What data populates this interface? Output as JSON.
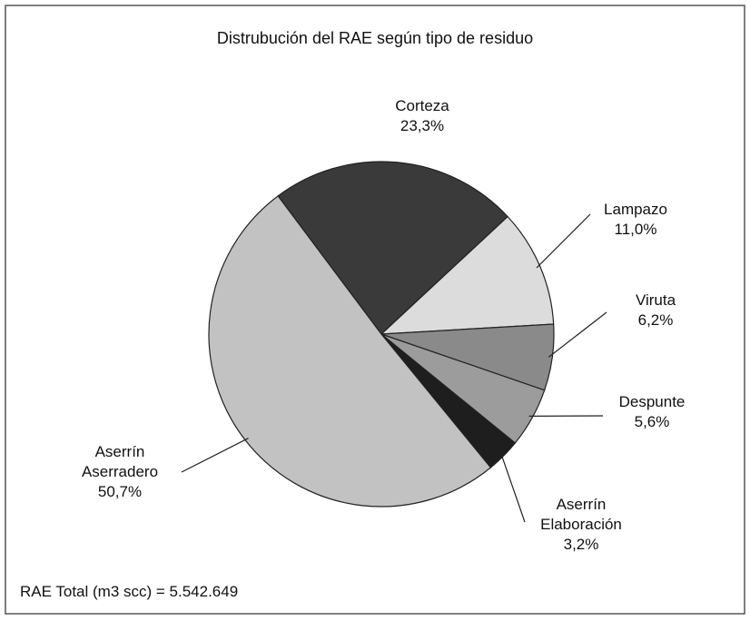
{
  "chart_data": {
    "type": "pie",
    "title": "Distrubución del RAE según tipo de residuo",
    "categories": [
      "Corteza",
      "Lampazo",
      "Viruta",
      "Despunte",
      "Aserrín Elaboración",
      "Aserrín Aserradero"
    ],
    "values": [
      23.3,
      11.0,
      6.2,
      5.6,
      3.2,
      50.7
    ],
    "value_labels": [
      "23,3%",
      "11,0%",
      "6,2%",
      "5,6%",
      "3,2%",
      "50,7%"
    ],
    "colors": [
      "#3a3a3a",
      "#dcdcdc",
      "#8a8a8a",
      "#9c9c9c",
      "#1e1e1e",
      "#c2c2c2"
    ],
    "annotation": "RAE Total (m3 scc) = 5.542.649"
  }
}
